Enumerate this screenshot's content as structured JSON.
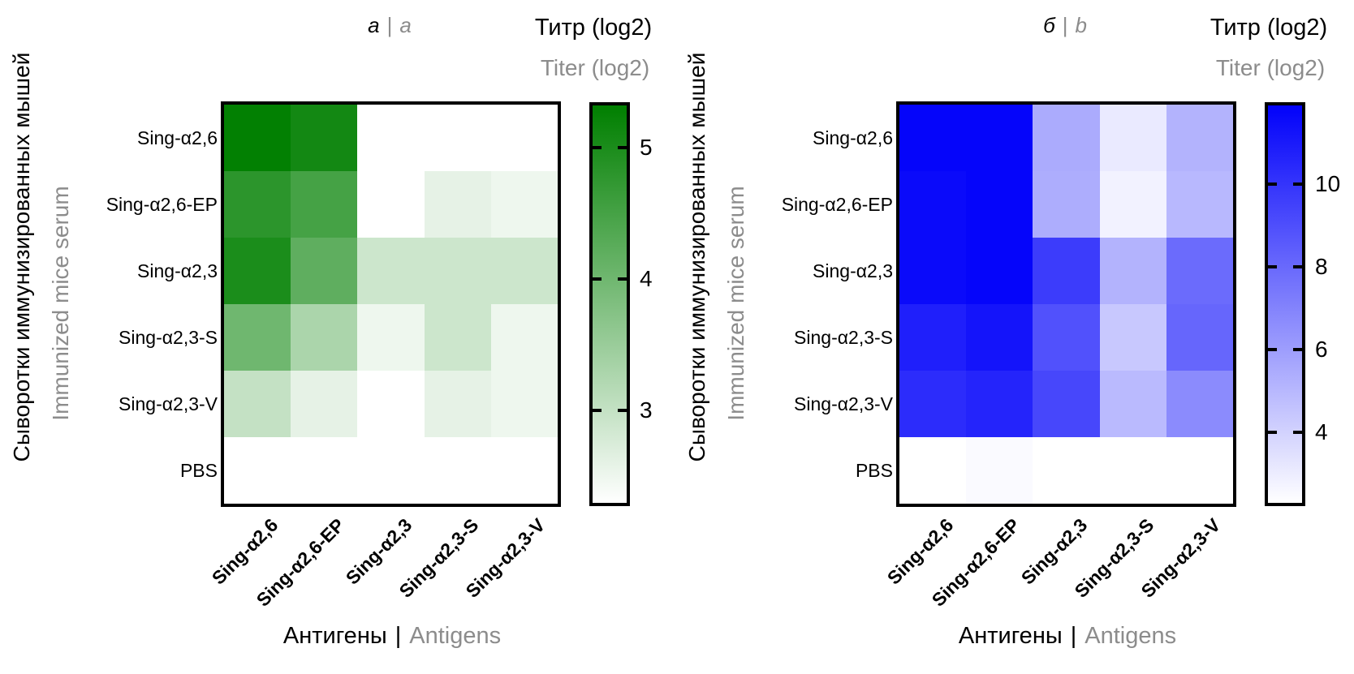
{
  "labels": {
    "separator": "|"
  },
  "chart_data": [
    {
      "type": "heatmap",
      "panel_label": {
        "ru": "а",
        "en": "a"
      },
      "colorbar_title": {
        "ru": "Титр (log2)",
        "en": "Titer (log2)"
      },
      "x_axis_title": {
        "ru": "Антигены",
        "en": "Antigens"
      },
      "y_axis_title": {
        "ru": "Сыворотки иммунизированных мышей",
        "en": "Immunized mice serum"
      },
      "rows": [
        "Sing-α2,6",
        "Sing-α2,6-EP",
        "Sing-α2,3",
        "Sing-α2,3-S",
        "Sing-α2,3-V",
        "PBS"
      ],
      "columns": [
        "Sing-α2,6",
        "Sing-α2,6-EP",
        "Sing-α2,3",
        "Sing-α2,3-S",
        "Sing-α2,3-V"
      ],
      "values_log2_titer": [
        [
          5.3,
          5.1,
          2.3,
          2.3,
          2.3
        ],
        [
          4.8,
          4.5,
          2.3,
          2.6,
          2.5
        ],
        [
          5.0,
          4.2,
          2.9,
          2.9,
          2.9
        ],
        [
          4.0,
          3.3,
          2.5,
          2.9,
          2.5
        ],
        [
          3.0,
          2.6,
          2.3,
          2.6,
          2.5
        ],
        [
          2.3,
          2.3,
          2.3,
          2.3,
          2.3
        ]
      ],
      "color_scale": {
        "low": "#ffffff",
        "high": "#007f00",
        "min": 2.3,
        "max": 5.32,
        "ticks": [
          5,
          4,
          3
        ],
        "position": "right"
      }
    },
    {
      "type": "heatmap",
      "panel_label": {
        "ru": "б",
        "en": "b"
      },
      "colorbar_title": {
        "ru": "Титр (log2)",
        "en": "Titer (log2)"
      },
      "x_axis_title": {
        "ru": "Антигены",
        "en": "Antigens"
      },
      "y_axis_title": {
        "ru": "Сыворотки иммунизированных мышей",
        "en": "Immunized mice serum"
      },
      "rows": [
        "Sing-α2,6",
        "Sing-α2,6-EP",
        "Sing-α2,3",
        "Sing-α2,3-S",
        "Sing-α2,3-V",
        "PBS"
      ],
      "columns": [
        "Sing-α2,6",
        "Sing-α2,6-EP",
        "Sing-α2,3",
        "Sing-α2,3-S",
        "Sing-α2,3-V"
      ],
      "values_log2_titer": [
        [
          11.8,
          11.8,
          5.5,
          3.1,
          5.2
        ],
        [
          11.6,
          11.8,
          5.4,
          2.8,
          5.0
        ],
        [
          11.6,
          11.8,
          9.7,
          5.2,
          7.9
        ],
        [
          10.8,
          11.2,
          8.9,
          4.4,
          8.1
        ],
        [
          10.3,
          10.6,
          9.3,
          4.9,
          6.7
        ],
        [
          2.3,
          2.5,
          2.3,
          2.3,
          2.3
        ]
      ],
      "color_scale": {
        "low": "#ffffff",
        "high": "#0202fa",
        "min": 2.3,
        "max": 11.9,
        "ticks": [
          10,
          8,
          6,
          4
        ],
        "position": "right"
      }
    }
  ]
}
